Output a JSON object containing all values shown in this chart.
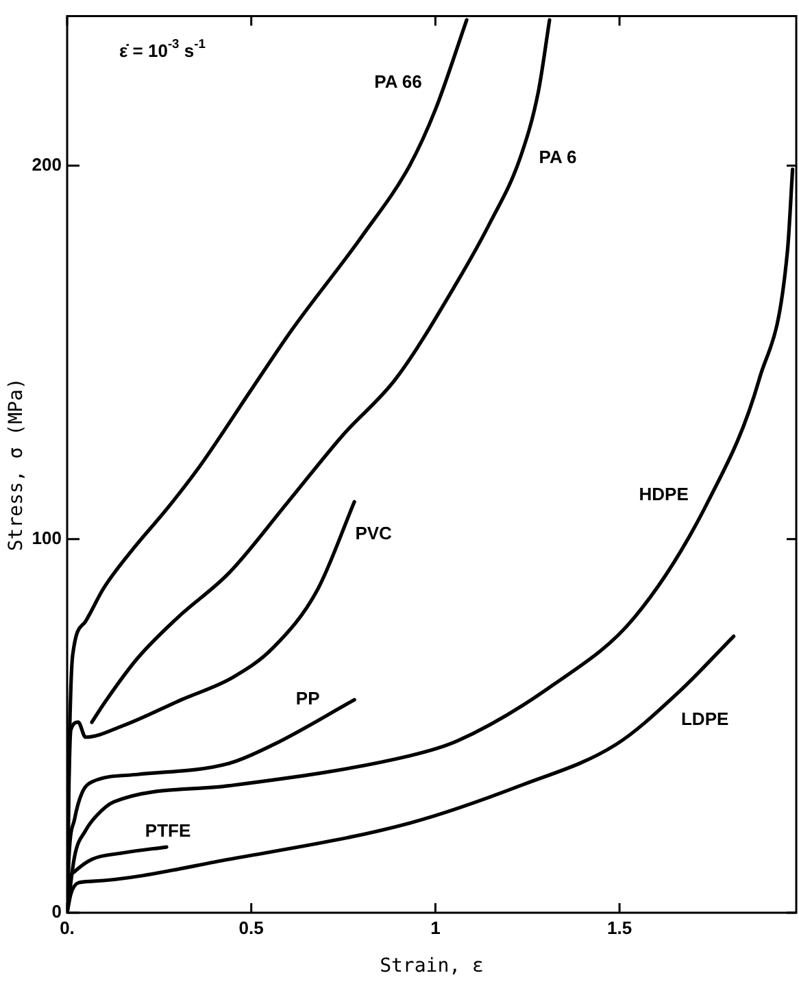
{
  "chart_data": {
    "type": "line",
    "xlabel": "Strain, ε",
    "ylabel": "Stress, σ (MPa)",
    "annotations": [
      "ε̇ = 10$^{-3}$ s$^{-1}$"
    ],
    "xlim": [
      0,
      1.98
    ],
    "ylim": [
      0,
      240
    ],
    "xticks": [
      {
        "value": 0,
        "label": "0."
      },
      0.5,
      1,
      1.5
    ],
    "yticks": [
      0,
      100,
      200
    ],
    "grid": false,
    "legend": false,
    "marker": "none",
    "line_style": "solid",
    "series": [
      {
        "name": "PA 66",
        "color": "#000000",
        "x": [
          0,
          0.005,
          0.01,
          0.015,
          0.05,
          0.1,
          0.18,
          0.27,
          0.36,
          0.5,
          0.61,
          0.8,
          0.93,
          1.0,
          1.085
        ],
        "values": [
          0,
          40,
          60,
          69,
          78,
          87,
          97.5,
          108,
          119.5,
          140,
          156,
          181,
          200,
          215,
          239
        ]
      },
      {
        "name": "PA 6",
        "color": "#000000",
        "x": [
          0.067,
          0.1,
          0.19,
          0.3,
          0.44,
          0.6,
          0.75,
          0.893,
          1.06,
          1.15,
          1.23,
          1.28,
          1.31
        ],
        "values": [
          51,
          56,
          68,
          79,
          91,
          110,
          128,
          143,
          169,
          185,
          202,
          220,
          239
        ]
      },
      {
        "name": "PVC",
        "color": "#000000",
        "x": [
          0,
          0.005,
          0.01,
          0.03,
          0.05,
          0.15,
          0.31,
          0.45,
          0.56,
          0.68,
          0.78
        ],
        "values": [
          0,
          35,
          49,
          51,
          47,
          50,
          57,
          63,
          71,
          86.5,
          110
        ]
      },
      {
        "name": "PP",
        "color": "#000000",
        "x": [
          0,
          0.005,
          0.02,
          0.04,
          0.067,
          0.19,
          0.44,
          0.56,
          0.78
        ],
        "values": [
          0,
          15,
          25,
          32,
          35,
          37,
          40,
          45,
          57
        ]
      },
      {
        "name": "HDPE",
        "color": "#000000",
        "x": [
          0,
          0.02,
          0.05,
          0.08,
          0.127,
          0.44,
          0.93,
          1.06,
          1.32,
          1.54,
          1.74,
          1.88,
          1.956,
          1.97
        ],
        "values": [
          0,
          15,
          22,
          26,
          29.7,
          34,
          42,
          46,
          61,
          79,
          110,
          143,
          177,
          199
        ]
      },
      {
        "name": "LDPE",
        "color": "#000000",
        "x": [
          0,
          0.01,
          0.03,
          0.067,
          0.44,
          0.93,
          1.23,
          1.49,
          1.66,
          1.81
        ],
        "values": [
          0,
          5,
          8,
          8.4,
          14.3,
          24,
          34,
          45,
          59,
          74
        ]
      },
      {
        "name": "PTFE",
        "color": "#000000",
        "x": [
          0,
          0.005,
          0.02,
          0.067,
          0.15,
          0.27
        ],
        "values": [
          0,
          8,
          11,
          14.3,
          16,
          17.6
        ]
      }
    ]
  }
}
